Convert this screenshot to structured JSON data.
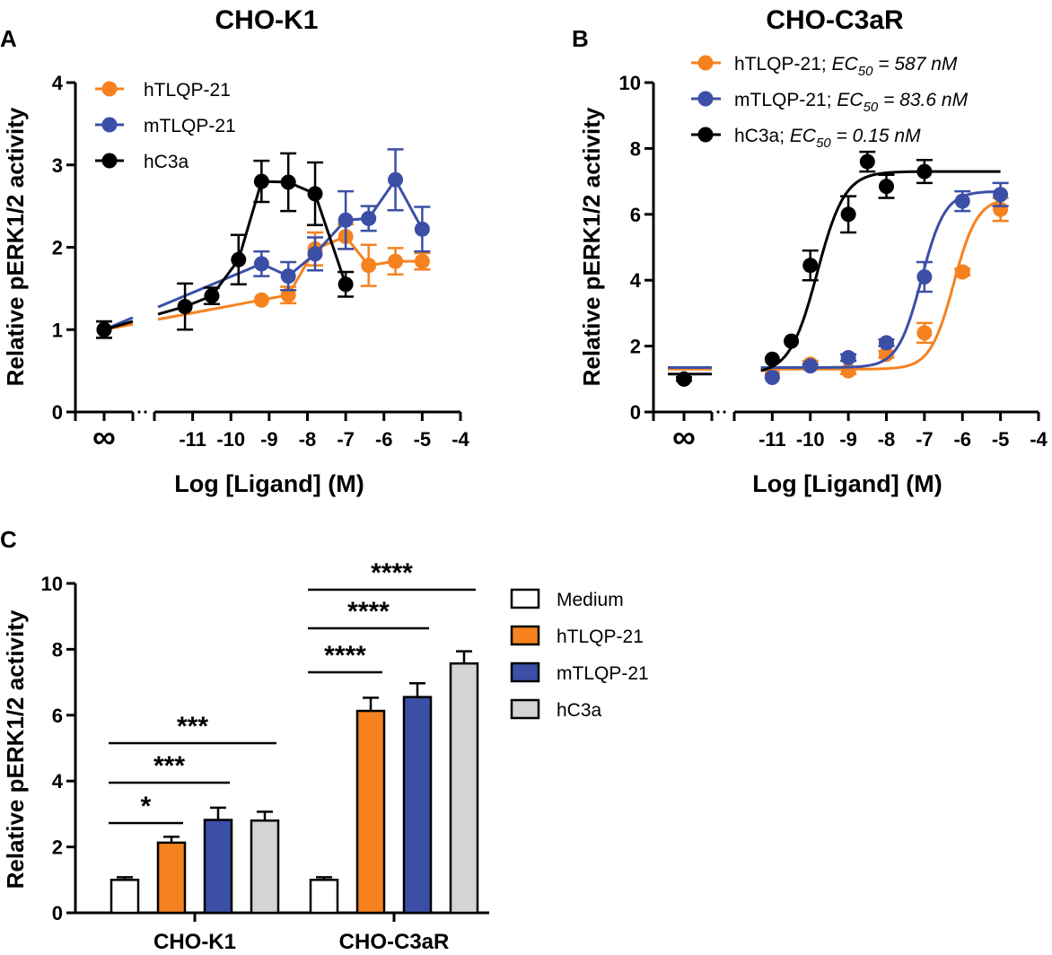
{
  "colors": {
    "hTLQP-21": "#f5821f",
    "mTLQP-21": "#3b4fa6",
    "hC3a": "#000000",
    "Medium": "#ffffff",
    "hC3a_bar": "#d4d4d4"
  },
  "chart_data": [
    {
      "panel": "A",
      "type": "line",
      "title": "CHO-K1",
      "xlabel": "Log [Ligand] (M)",
      "ylabel": "Relative pERK1/2 activity",
      "xlim": [
        -12,
        -4
      ],
      "ylim": [
        0,
        4
      ],
      "xticks": [
        "-11",
        "-10",
        "-9",
        "-8",
        "-7",
        "-6",
        "-5",
        "-4"
      ],
      "yticks": [
        "0",
        "1",
        "2",
        "3",
        "4"
      ],
      "baseline_label": "∞",
      "legend": [
        "hTLQP-21",
        "mTLQP-21",
        "hC3a"
      ],
      "series": [
        {
          "name": "hTLQP-21",
          "color": "#f5821f",
          "x": [
            -9.2,
            -8.5,
            -7.8,
            -7.0,
            -6.4,
            -5.7,
            -5.0
          ],
          "y": [
            1.36,
            1.42,
            1.98,
            2.13,
            1.78,
            1.83,
            1.83
          ],
          "err": [
            0.0,
            0.1,
            0.2,
            0.15,
            0.25,
            0.16,
            0.1
          ],
          "baseline": {
            "y": 1.0,
            "err": 0.1
          }
        },
        {
          "name": "mTLQP-21",
          "color": "#3b4fa6",
          "x": [
            -9.2,
            -8.5,
            -7.8,
            -7.0,
            -6.4,
            -5.7,
            -5.0
          ],
          "y": [
            1.8,
            1.65,
            1.92,
            2.33,
            2.35,
            2.82,
            2.22
          ],
          "err": [
            0.15,
            0.17,
            0.2,
            0.35,
            0.15,
            0.37,
            0.27
          ],
          "baseline": {
            "y": 1.0,
            "err": 0.1
          }
        },
        {
          "name": "hC3a",
          "color": "#000000",
          "x": [
            -11.2,
            -10.5,
            -9.8,
            -9.2,
            -8.5,
            -7.8,
            -7.0
          ],
          "y": [
            1.28,
            1.41,
            1.85,
            2.8,
            2.79,
            2.65,
            1.55
          ],
          "err": [
            0.28,
            0.1,
            0.3,
            0.25,
            0.35,
            0.38,
            0.15
          ],
          "baseline": {
            "y": 1.0,
            "err": 0.1
          }
        }
      ]
    },
    {
      "panel": "B",
      "type": "line",
      "title": "CHO-C3aR",
      "xlabel": "Log [Ligand] (M)",
      "ylabel": "Relative pERK1/2 activity",
      "xlim": [
        -12,
        -4
      ],
      "ylim": [
        0,
        10
      ],
      "xticks": [
        "-11",
        "-10",
        "-9",
        "-8",
        "-7",
        "-6",
        "-5",
        "-4"
      ],
      "yticks": [
        "0",
        "2",
        "4",
        "6",
        "8",
        "10"
      ],
      "baseline_label": "∞",
      "legend_prefix": [
        "hTLQP-21; ",
        "mTLQP-21; ",
        "hC3a; "
      ],
      "legend_ec50": [
        "587 nM",
        "83.6 nM",
        "0.15 nM"
      ],
      "ec50_label": "EC",
      "ec50_sub": "50",
      "series": [
        {
          "name": "hTLQP-21",
          "color": "#f5821f",
          "x": [
            -11.0,
            -10.0,
            -9.0,
            -8.0,
            -7.0,
            -6.0,
            -5.0
          ],
          "y": [
            1.15,
            1.45,
            1.25,
            1.75,
            2.4,
            4.25,
            6.15
          ],
          "err": [
            0.0,
            0.1,
            0.1,
            0.1,
            0.3,
            0.1,
            0.35
          ],
          "baseline": {
            "y": 1.0,
            "err": 0.05
          },
          "fit": {
            "bottom": 1.3,
            "top": 6.5,
            "logec50": -6.23,
            "hill": 1.4
          }
        },
        {
          "name": "mTLQP-21",
          "color": "#3b4fa6",
          "x": [
            -11.0,
            -10.0,
            -9.0,
            -8.0,
            -7.0,
            -6.0,
            -5.0
          ],
          "y": [
            1.05,
            1.4,
            1.65,
            2.1,
            4.1,
            6.4,
            6.6
          ],
          "err": [
            0.0,
            0.05,
            0.1,
            0.1,
            0.45,
            0.3,
            0.35
          ],
          "baseline": {
            "y": 1.0,
            "err": 0.05
          },
          "fit": {
            "bottom": 1.35,
            "top": 6.7,
            "logec50": -7.08,
            "hill": 1.4
          }
        },
        {
          "name": "hC3a",
          "color": "#000000",
          "x": [
            -11.0,
            -10.5,
            -10.0,
            -9.0,
            -8.5,
            -8.0,
            -7.0
          ],
          "y": [
            1.6,
            2.15,
            4.45,
            6.0,
            7.6,
            6.85,
            7.3
          ],
          "err": [
            0.0,
            0.0,
            0.45,
            0.55,
            0.3,
            0.35,
            0.35
          ],
          "baseline": {
            "y": 1.0,
            "err": 0.05
          },
          "fit": {
            "bottom": 1.15,
            "top": 7.3,
            "logec50": -9.82,
            "hill": 1.2
          }
        }
      ]
    },
    {
      "panel": "C",
      "type": "bar",
      "ylabel": "Relative pERK1/2 activity",
      "ylim": [
        0,
        10
      ],
      "yticks": [
        "0",
        "2",
        "4",
        "6",
        "8",
        "10"
      ],
      "categories": [
        "CHO-K1",
        "CHO-C3aR"
      ],
      "series": [
        {
          "name": "Medium",
          "color": "#ffffff",
          "values": [
            1.0,
            1.0
          ],
          "err": [
            0.08,
            0.08
          ]
        },
        {
          "name": "hTLQP-21",
          "color": "#f5821f",
          "values": [
            2.13,
            6.13
          ],
          "err": [
            0.18,
            0.4
          ]
        },
        {
          "name": "mTLQP-21",
          "color": "#3b4fa6",
          "values": [
            2.82,
            6.55
          ],
          "err": [
            0.37,
            0.42
          ]
        },
        {
          "name": "hC3a",
          "color": "#d4d4d4",
          "values": [
            2.8,
            7.57
          ],
          "err": [
            0.27,
            0.37
          ]
        }
      ],
      "significance": [
        {
          "group": 0,
          "to": 1,
          "label": "*"
        },
        {
          "group": 0,
          "to": 2,
          "label": "***"
        },
        {
          "group": 0,
          "to": 3,
          "label": "***"
        },
        {
          "group": 1,
          "to": 1,
          "label": "****"
        },
        {
          "group": 1,
          "to": 2,
          "label": "****"
        },
        {
          "group": 1,
          "to": 3,
          "label": "****"
        }
      ]
    }
  ]
}
